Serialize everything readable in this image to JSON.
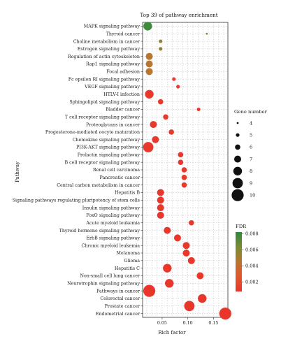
{
  "chart_data": {
    "type": "scatter",
    "title": "Top 39 of pathway enrichment",
    "xlabel": "Rich factor",
    "ylabel": "Pathway",
    "xlim": [
      0.012,
      0.178
    ],
    "xticks": [
      0.05,
      0.1,
      0.15
    ],
    "xtick_labels": [
      "0.05",
      "0.10",
      "0.15"
    ],
    "grid": true,
    "categories": [
      "MAPK signaling pathway",
      "Thyroid cancer",
      "Choline metabolism in cancer",
      "Estrogen signaling pathway",
      "Regulation of actin cytoskeleton",
      "Rap1 signaling pathway",
      "Focal adhesion",
      "Fc epsilon RI signaling pathway",
      "VEGF signaling pathway",
      "HTLV-I infection",
      "Sphingolipid signaling pathway",
      "Bladder cancer",
      "T cell receptor signaling pathway",
      "Proteoglycans in cancer",
      "Progesterone-mediated oocyte maturation",
      "Chemokine signaling pathway",
      "PI3K-AKT signaling pathway",
      "Prolactin signaling pathway",
      "B cell receptor signaling pathway",
      "Renal cell carcinoma",
      "Pancreatic cancer",
      "Central carbon metabolism in cancer",
      "Hepatitis B",
      "Signaling pathways regulating pluripotency of stem cells",
      "Insulin signaling pathway",
      "FoxO signaling pathway",
      "Acute myeloid leukemia",
      "Thyroid hormone signaling pathway",
      "ErbB signaling pathway",
      "Chronic myeloid leukemia",
      "Melanoma",
      "Glioma",
      "Hepatitis C",
      "Non-small cell lung cancer",
      "Neurotrophin signaling pathway",
      "Pathways in cancer",
      "Colorectal cancer",
      "Prostate cancer",
      "Endometrial cancer"
    ],
    "points": [
      {
        "pathway": "MAPK signaling pathway",
        "rich_factor": 0.022,
        "gene_number": 8,
        "fdr": 0.0078
      },
      {
        "pathway": "Thyroid cancer",
        "rich_factor": 0.137,
        "gene_number": 4,
        "fdr": 0.0066
      },
      {
        "pathway": "Choline metabolism in cancer",
        "rich_factor": 0.047,
        "gene_number": 5,
        "fdr": 0.0055
      },
      {
        "pathway": "Estrogen signaling pathway",
        "rich_factor": 0.047,
        "gene_number": 5,
        "fdr": 0.0055
      },
      {
        "pathway": "Regulation of actin cytoskeleton",
        "rich_factor": 0.025,
        "gene_number": 7,
        "fdr": 0.0045
      },
      {
        "pathway": "Rap1 signaling pathway",
        "rich_factor": 0.025,
        "gene_number": 7,
        "fdr": 0.0045
      },
      {
        "pathway": "Focal adhesion",
        "rich_factor": 0.025,
        "gene_number": 7,
        "fdr": 0.0045
      },
      {
        "pathway": "Fc epsilon RI signaling pathway",
        "rich_factor": 0.073,
        "gene_number": 5,
        "fdr": 0.0012
      },
      {
        "pathway": "VEGF signaling pathway",
        "rich_factor": 0.081,
        "gene_number": 5,
        "fdr": 0.0012
      },
      {
        "pathway": "HTLV-I infection",
        "rich_factor": 0.025,
        "gene_number": 8,
        "fdr": 0.001
      },
      {
        "pathway": "Sphingolipid signaling pathway",
        "rich_factor": 0.047,
        "gene_number": 6,
        "fdr": 0.001
      },
      {
        "pathway": "Bladder cancer",
        "rich_factor": 0.121,
        "gene_number": 5,
        "fdr": 0.001
      },
      {
        "pathway": "T cell receptor signaling pathway",
        "rich_factor": 0.057,
        "gene_number": 6,
        "fdr": 0.001
      },
      {
        "pathway": "Proteoglycans in cancer",
        "rich_factor": 0.033,
        "gene_number": 7,
        "fdr": 0.001
      },
      {
        "pathway": "Progesterone-mediated oocyte maturation",
        "rich_factor": 0.068,
        "gene_number": 6,
        "fdr": 0.001
      },
      {
        "pathway": "Chemokine signaling pathway",
        "rich_factor": 0.037,
        "gene_number": 7,
        "fdr": 0.001
      },
      {
        "pathway": "PI3K-AKT signaling pathway",
        "rich_factor": 0.023,
        "gene_number": 9,
        "fdr": 0.001
      },
      {
        "pathway": "Prolactin signaling pathway",
        "rich_factor": 0.086,
        "gene_number": 6,
        "fdr": 0.0009
      },
      {
        "pathway": "B cell receptor signaling pathway",
        "rich_factor": 0.086,
        "gene_number": 6,
        "fdr": 0.0009
      },
      {
        "pathway": "Renal cell carcinoma",
        "rich_factor": 0.093,
        "gene_number": 6,
        "fdr": 0.0009
      },
      {
        "pathway": "Pancreatic cancer",
        "rich_factor": 0.093,
        "gene_number": 6,
        "fdr": 0.0009
      },
      {
        "pathway": "Central carbon metabolism in cancer",
        "rich_factor": 0.093,
        "gene_number": 6,
        "fdr": 0.0009
      },
      {
        "pathway": "Hepatitis B",
        "rich_factor": 0.047,
        "gene_number": 7,
        "fdr": 0.0009
      },
      {
        "pathway": "Signaling pathways regulating pluripotency of stem cells",
        "rich_factor": 0.047,
        "gene_number": 7,
        "fdr": 0.0009
      },
      {
        "pathway": "Insulin signaling pathway",
        "rich_factor": 0.047,
        "gene_number": 7,
        "fdr": 0.0009
      },
      {
        "pathway": "FoxO signaling pathway",
        "rich_factor": 0.047,
        "gene_number": 7,
        "fdr": 0.0009
      },
      {
        "pathway": "Acute myeloid leukemia",
        "rich_factor": 0.107,
        "gene_number": 6,
        "fdr": 0.0009
      },
      {
        "pathway": "Thyroid hormone signaling pathway",
        "rich_factor": 0.06,
        "gene_number": 7,
        "fdr": 0.0009
      },
      {
        "pathway": "ErbB signaling pathway",
        "rich_factor": 0.08,
        "gene_number": 7,
        "fdr": 0.0009
      },
      {
        "pathway": "Chronic myeloid leukemia",
        "rich_factor": 0.097,
        "gene_number": 7,
        "fdr": 0.0009
      },
      {
        "pathway": "Melanoma",
        "rich_factor": 0.097,
        "gene_number": 7,
        "fdr": 0.0009
      },
      {
        "pathway": "Glioma",
        "rich_factor": 0.107,
        "gene_number": 7,
        "fdr": 0.0009
      },
      {
        "pathway": "Hepatitis C",
        "rich_factor": 0.06,
        "gene_number": 8,
        "fdr": 0.0009
      },
      {
        "pathway": "Non-small cell lung cancer",
        "rich_factor": 0.124,
        "gene_number": 7,
        "fdr": 0.0009
      },
      {
        "pathway": "Neurotrophin signaling pathway",
        "rich_factor": 0.064,
        "gene_number": 8,
        "fdr": 0.0009
      },
      {
        "pathway": "Pathways in cancer",
        "rich_factor": 0.025,
        "gene_number": 10,
        "fdr": 0.0008
      },
      {
        "pathway": "Colorectal cancer",
        "rich_factor": 0.128,
        "gene_number": 8,
        "fdr": 0.0008
      },
      {
        "pathway": "Prostate cancer",
        "rich_factor": 0.103,
        "gene_number": 9,
        "fdr": 0.0008
      },
      {
        "pathway": "Endometrial cancer",
        "rich_factor": 0.173,
        "gene_number": 10,
        "fdr": 0.0008
      }
    ],
    "size_legend": {
      "title": "Gene number",
      "values": [
        4,
        5,
        6,
        7,
        8,
        9,
        10
      ],
      "labels": [
        "4",
        "5",
        "6",
        "7",
        "8",
        "9",
        "10"
      ]
    },
    "color_legend": {
      "title": "FDR",
      "min": 0.0008,
      "max": 0.0082,
      "ticks": [
        0.002,
        0.004,
        0.006,
        0.008
      ],
      "tick_labels": [
        "0.002",
        "0.004",
        "0.006",
        "0.008"
      ],
      "colors": [
        "#e8362c",
        "#e4572b",
        "#b8762e",
        "#7a8b33",
        "#2f8a3e"
      ]
    },
    "legend_placement": "right"
  }
}
